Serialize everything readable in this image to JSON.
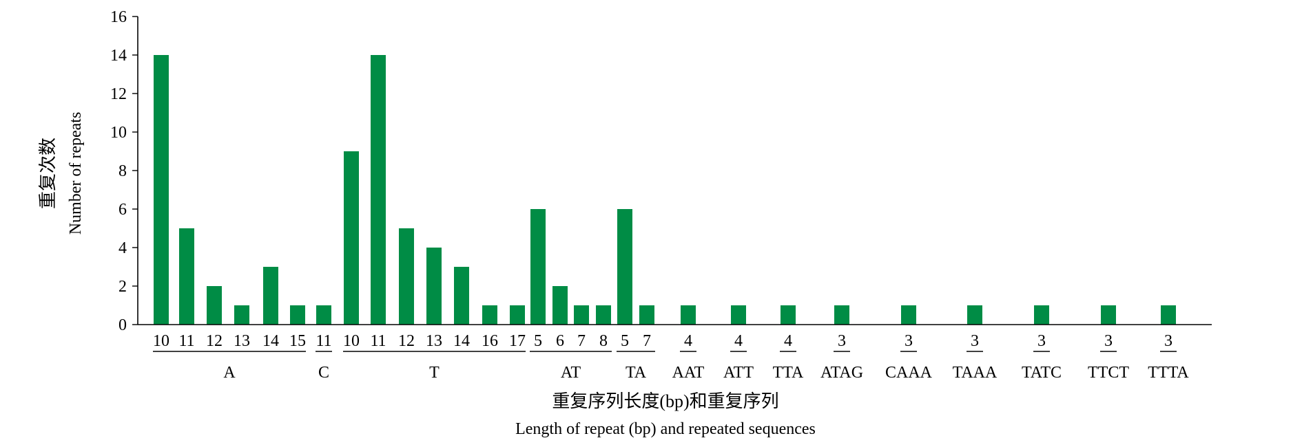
{
  "chart_data": {
    "type": "bar",
    "ylabel_zh": "重复次数",
    "ylabel_en": "Number of repeats",
    "xlabel_zh": "重复序列长度(bp)和重复序列",
    "xlabel_en": "Length of repeat (bp) and repeated sequences",
    "ylim": [
      0,
      16
    ],
    "yticks": [
      0,
      2,
      4,
      6,
      8,
      10,
      12,
      14,
      16
    ],
    "grid": false,
    "bar_color": "#008c45",
    "groups": [
      {
        "name": "A",
        "lengths": [
          "10",
          "11",
          "12",
          "13",
          "14",
          "15"
        ],
        "values": [
          14,
          5,
          2,
          1,
          3,
          1
        ]
      },
      {
        "name": "C",
        "lengths": [
          "11"
        ],
        "values": [
          1
        ]
      },
      {
        "name": "T",
        "lengths": [
          "10",
          "11",
          "12",
          "13",
          "14",
          "16",
          "17"
        ],
        "values": [
          9,
          14,
          5,
          4,
          3,
          1,
          1
        ]
      },
      {
        "name": "AT",
        "lengths": [
          "5",
          "6",
          "7",
          "8"
        ],
        "values": [
          6,
          2,
          1,
          1
        ]
      },
      {
        "name": "TA",
        "lengths": [
          "5",
          "7"
        ],
        "values": [
          6,
          1
        ]
      },
      {
        "name": "AAT",
        "lengths": [
          "4"
        ],
        "values": [
          1
        ]
      },
      {
        "name": "ATT",
        "lengths": [
          "4"
        ],
        "values": [
          1
        ]
      },
      {
        "name": "TTA",
        "lengths": [
          "4"
        ],
        "values": [
          1
        ]
      },
      {
        "name": "ATAG",
        "lengths": [
          "3"
        ],
        "values": [
          1
        ]
      },
      {
        "name": "CAAA",
        "lengths": [
          "3"
        ],
        "values": [
          1
        ]
      },
      {
        "name": "TAAA",
        "lengths": [
          "3"
        ],
        "values": [
          1
        ]
      },
      {
        "name": "TATC",
        "lengths": [
          "3"
        ],
        "values": [
          1
        ]
      },
      {
        "name": "TTCT",
        "lengths": [
          "3"
        ],
        "values": [
          1
        ]
      },
      {
        "name": "TTTA",
        "lengths": [
          "3"
        ],
        "values": [
          1
        ]
      }
    ]
  }
}
